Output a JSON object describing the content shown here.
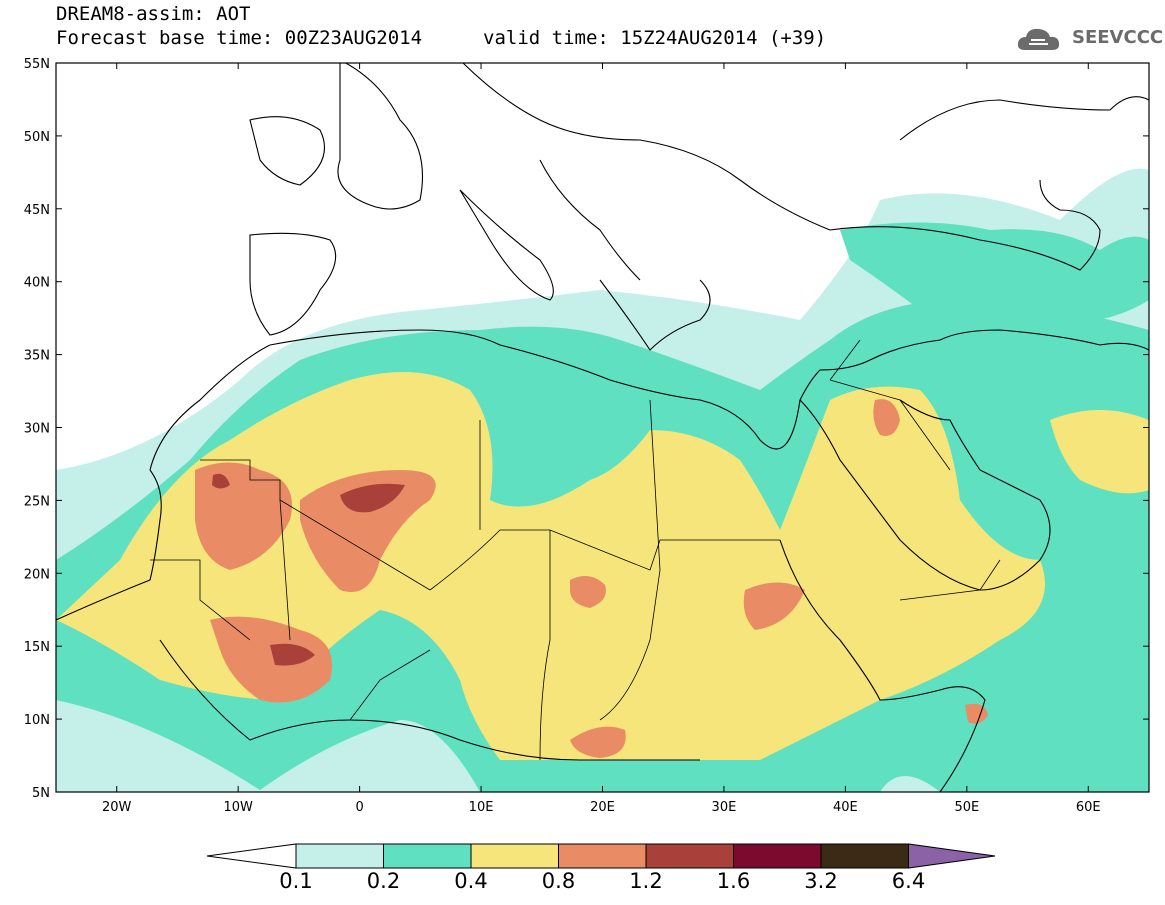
{
  "header": {
    "title_line1": "DREAM8-assim: AOT",
    "title_line2": "Forecast base time: 00Z23AUG2014",
    "valid_time": "valid time: 15Z24AUG2014 (+39)",
    "logo_text": "SEEVCCC",
    "logo_icon": "cloud-icon"
  },
  "map": {
    "lat_labels": [
      "55N",
      "50N",
      "45N",
      "40N",
      "35N",
      "30N",
      "25N",
      "20N",
      "15N",
      "10N",
      "5N"
    ],
    "lon_labels": [
      "20W",
      "10W",
      "0",
      "10E",
      "20E",
      "30E",
      "40E",
      "50E",
      "60E"
    ],
    "lon_range": [
      -25,
      65
    ],
    "lat_range": [
      5,
      55
    ]
  },
  "colorbar": {
    "labels": [
      "0.1",
      "0.2",
      "0.4",
      "0.8",
      "1.2",
      "1.6",
      "3.2",
      "6.4"
    ],
    "colors": [
      "#ffffff",
      "#c5efe9",
      "#5fe0c1",
      "#f5e57a",
      "#e98c65",
      "#a9413a",
      "#7c0a2e",
      "#3b2a15",
      "#8c62a6"
    ]
  }
}
